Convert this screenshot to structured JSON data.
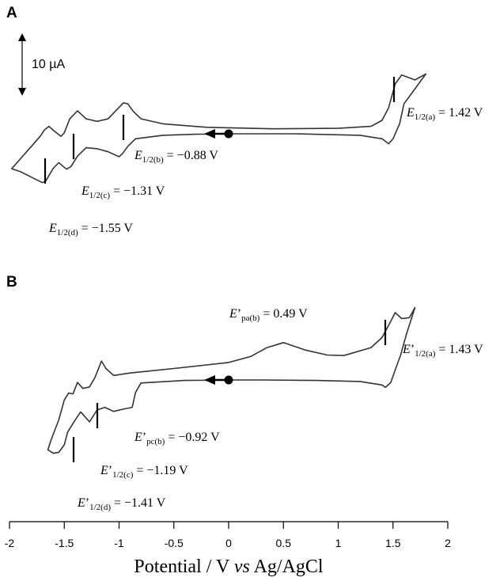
{
  "chart_data": {
    "type": "line",
    "x_axis": {
      "title": {
        "pre": "Potential / V ",
        "italic": "vs",
        "post": " Ag/AgCl"
      },
      "range": [
        -2,
        2
      ],
      "ticks": [
        -2,
        -1.5,
        -1,
        -0.5,
        0,
        0.5,
        1,
        1.5,
        2
      ],
      "tick_labels": [
        "-2",
        "-1.5",
        "-1",
        "-0.5",
        "0",
        "0.5",
        "1",
        "1.5",
        "2"
      ]
    },
    "scale_bar": {
      "label": "10 µA",
      "value_uA": 10
    },
    "panels": [
      {
        "letter": "A",
        "start_potential": 0,
        "sweep_direction": "negative",
        "annotations": [
          {
            "symbol": "E",
            "prime": "",
            "sub": "1/2(a)",
            "value": "= 1.42 V",
            "potential": 1.42
          },
          {
            "symbol": "E",
            "prime": "",
            "sub": "1/2(b)",
            "value": "= −0.88 V",
            "potential": -0.88
          },
          {
            "symbol": "E",
            "prime": "",
            "sub": "1/2(c)",
            "value": "= −1.31 V",
            "potential": -1.31
          },
          {
            "symbol": "E",
            "prime": "",
            "sub": "1/2(d)",
            "value": "= −1.55 V",
            "potential": -1.55
          }
        ],
        "series": [
          {
            "segment": "cathodic sweep (0 V → −1.98 V)",
            "x": [
              0,
              -0.3,
              -0.6,
              -0.85,
              -0.92,
              -0.97,
              -1.0,
              -1.1,
              -1.2,
              -1.3,
              -1.38,
              -1.44,
              -1.48,
              -1.55,
              -1.6,
              -1.67,
              -1.7,
              -1.8,
              -1.9,
              -1.98
            ],
            "y_uA": [
              0,
              -0.1,
              -0.3,
              -1.0,
              -2.5,
              -4.0,
              -4.6,
              -3.6,
              -3.0,
              -2.8,
              -4.5,
              -6.6,
              -7.1,
              -5.8,
              -6.9,
              -9.5,
              -9.8,
              -8.7,
              -7.6,
              -7.0
            ]
          },
          {
            "segment": "anodic sweep (−1.98 V → 1.8 V)",
            "x": [
              -1.98,
              -1.9,
              -1.8,
              -1.72,
              -1.68,
              -1.64,
              -1.6,
              -1.53,
              -1.5,
              -1.45,
              -1.38,
              -1.34,
              -1.3,
              -1.2,
              -1.1,
              -0.96,
              -0.92,
              -0.87,
              -0.8,
              -0.6,
              -0.2,
              0.4,
              1.0,
              1.3,
              1.4,
              1.46,
              1.52,
              1.58,
              1.7,
              1.8
            ],
            "y_uA": [
              -7.0,
              -5.0,
              -2.5,
              -0.5,
              0.8,
              1.5,
              0.7,
              -0.5,
              0.2,
              3.0,
              4.6,
              3.8,
              3.0,
              2.5,
              3.0,
              6.2,
              6.0,
              4.5,
              3.0,
              2.0,
              1.3,
              1.0,
              1.1,
              1.5,
              2.7,
              5.2,
              10.0,
              11.8,
              10.8,
              12.0
            ]
          },
          {
            "segment": "return sweep (1.8 V → 0 V)",
            "x": [
              1.8,
              1.6,
              1.56,
              1.5,
              1.46,
              1.4,
              1.2,
              0.6,
              0.2,
              0
            ],
            "y_uA": [
              12.0,
              6.0,
              2.0,
              -1.0,
              -2.0,
              -1.0,
              -0.3,
              0,
              0,
              0
            ]
          }
        ]
      },
      {
        "letter": "B",
        "start_potential": 0,
        "sweep_direction": "negative",
        "annotations": [
          {
            "symbol": "E",
            "prime": "’",
            "sub": "pa(b)",
            "value": "= 0.49 V",
            "potential": 0.49
          },
          {
            "symbol": "E",
            "prime": "’",
            "sub": "1/2(a)",
            "value": "= 1.43 V",
            "potential": 1.43
          },
          {
            "symbol": "E",
            "prime": "’",
            "sub": "pc(b)",
            "value": "= −0.92 V",
            "potential": -0.92
          },
          {
            "symbol": "E",
            "prime": "’",
            "sub": "1/2(c)",
            "value": "= −1.19 V",
            "potential": -1.19
          },
          {
            "symbol": "E",
            "prime": "’",
            "sub": "1/2(d)",
            "value": "= −1.41 V",
            "potential": -1.41
          }
        ],
        "series": [
          {
            "segment": "cathodic sweep (0 V → −1.65 V)",
            "x": [
              0,
              -0.4,
              -0.8,
              -0.85,
              -0.88,
              -0.95,
              -1.05,
              -1.13,
              -1.2,
              -1.27,
              -1.35,
              -1.4,
              -1.47,
              -1.5,
              -1.55,
              -1.6,
              -1.65
            ],
            "y_uA": [
              0,
              -0.1,
              -0.6,
              -2.5,
              -5.5,
              -5.8,
              -6.3,
              -5.5,
              -6.0,
              -8.4,
              -6.4,
              -8.0,
              -10.5,
              -13.0,
              -14.5,
              -14.7,
              -14.0
            ]
          },
          {
            "segment": "anodic sweep (−1.65 V → 1.7 V)",
            "x": [
              -1.65,
              -1.62,
              -1.55,
              -1.5,
              -1.46,
              -1.42,
              -1.38,
              -1.33,
              -1.27,
              -1.22,
              -1.16,
              -1.12,
              -1.05,
              -0.9,
              -0.5,
              0,
              0.2,
              0.35,
              0.5,
              0.7,
              0.9,
              1.05,
              1.1,
              1.3,
              1.4,
              1.48,
              1.52,
              1.58,
              1.65,
              1.7
            ],
            "y_uA": [
              -14.0,
              -12.0,
              -8.0,
              -4.0,
              -2.6,
              -2.8,
              -0.5,
              -1.7,
              -1.4,
              0.5,
              3.8,
              2.3,
              0.9,
              1.4,
              2.3,
              3.5,
              4.7,
              6.5,
              7.5,
              6.0,
              5.0,
              4.9,
              5.2,
              6.5,
              8.5,
              11.8,
              13.5,
              12.3,
              12.5,
              14.5
            ]
          },
          {
            "segment": "return sweep (1.7 V → 0 V)",
            "x": [
              1.7,
              1.62,
              1.57,
              1.52,
              1.48,
              1.43,
              1.4,
              1.2,
              0.8,
              0.3,
              0
            ],
            "y_uA": [
              14.5,
              9.0,
              5.0,
              2.0,
              -0.5,
              -1.5,
              -1.0,
              -0.3,
              -0.1,
              0,
              0
            ]
          }
        ]
      }
    ]
  }
}
